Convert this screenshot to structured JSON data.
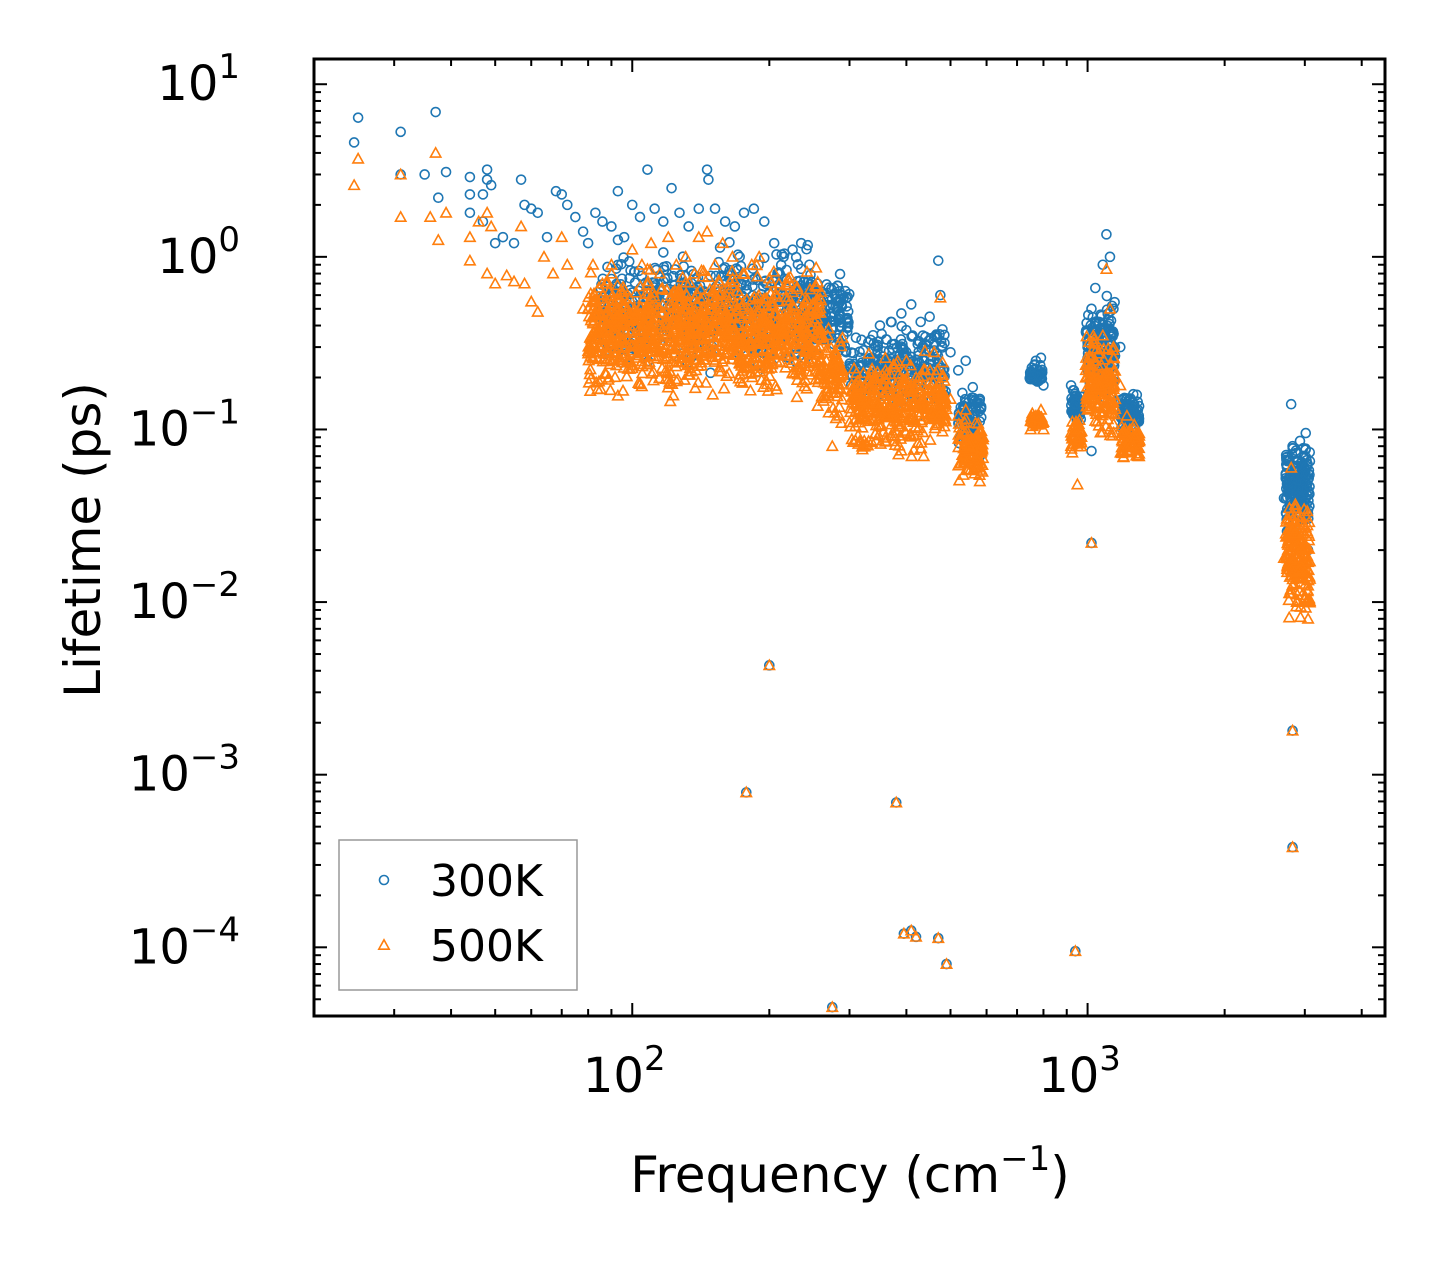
{
  "chart_data": {
    "type": "scatter",
    "title": "",
    "xlabel": "Frequency (cm",
    "xlabel_sup": "−1",
    "xlabel_suffix": ")",
    "ylabel": "Lifetime (ps)",
    "xscale": "log",
    "yscale": "log",
    "xlim": [
      20,
      4500
    ],
    "ylim": [
      4e-05,
      14
    ],
    "x_ticks": [
      {
        "value": 100,
        "base": "10",
        "exp": "2"
      },
      {
        "value": 1000,
        "base": "10",
        "exp": "3"
      }
    ],
    "y_ticks": [
      {
        "value": 10,
        "base": "10",
        "exp": "1"
      },
      {
        "value": 1,
        "base": "10",
        "exp": "0"
      },
      {
        "value": 0.1,
        "base": "10",
        "exp": "−1"
      },
      {
        "value": 0.01,
        "base": "10",
        "exp": "−2"
      },
      {
        "value": 0.001,
        "base": "10",
        "exp": "−3"
      },
      {
        "value": 0.0001,
        "base": "10",
        "exp": "−4"
      }
    ],
    "legend": {
      "position": "lower-left",
      "entries": [
        {
          "label": "300K",
          "marker": "circle",
          "color": "#1f77b4"
        },
        {
          "label": "500K",
          "marker": "triangle",
          "color": "#ff7f0e"
        }
      ]
    },
    "series": [
      {
        "name": "300K",
        "marker": "circle",
        "color": "#1f77b4",
        "points": [
          [
            24.5,
            4.6
          ],
          [
            25,
            6.4
          ],
          [
            31,
            5.3
          ],
          [
            31,
            3.0
          ],
          [
            35,
            3.0
          ],
          [
            37,
            6.9
          ],
          [
            37.5,
            2.2
          ],
          [
            39,
            3.1
          ],
          [
            44,
            2.9
          ],
          [
            44,
            2.3
          ],
          [
            44,
            1.8
          ],
          [
            47,
            2.3
          ],
          [
            47,
            1.6
          ],
          [
            48,
            3.2
          ],
          [
            48,
            2.8
          ],
          [
            49,
            2.6
          ],
          [
            50,
            1.2
          ],
          [
            52,
            1.3
          ],
          [
            55,
            1.2
          ],
          [
            57,
            2.8
          ],
          [
            58,
            2.0
          ],
          [
            60,
            1.9
          ],
          [
            62,
            1.8
          ],
          [
            65,
            1.3
          ],
          [
            68,
            2.4
          ],
          [
            70,
            2.3
          ],
          [
            72,
            2.0
          ],
          [
            75,
            1.7
          ],
          [
            78,
            1.4
          ],
          [
            80,
            1.2
          ],
          [
            83,
            1.8
          ],
          [
            86,
            1.6
          ],
          [
            90,
            1.5
          ],
          [
            93,
            2.4
          ],
          [
            96,
            1.3
          ],
          [
            100,
            2.0
          ],
          [
            104,
            1.7
          ],
          [
            108,
            3.2
          ],
          [
            112,
            1.9
          ],
          [
            117,
            1.6
          ],
          [
            122,
            2.5
          ],
          [
            127,
            1.8
          ],
          [
            133,
            1.5
          ],
          [
            140,
            1.9
          ],
          [
            146,
            3.2
          ],
          [
            147,
            2.8
          ],
          [
            152,
            1.9
          ],
          [
            160,
            1.6
          ],
          [
            168,
            1.5
          ],
          [
            176,
            1.8
          ],
          [
            185,
            1.9
          ],
          [
            195,
            1.6
          ],
          [
            205,
            1.2
          ],
          [
            215,
            1.0
          ],
          [
            225,
            1.1
          ],
          [
            235,
            1.2
          ],
          [
            245,
            0.9
          ],
          [
            255,
            0.7
          ],
          [
            265,
            0.5
          ],
          [
            275,
            0.38
          ],
          [
            285,
            0.3
          ],
          [
            295,
            0.28
          ],
          [
            310,
            0.34
          ],
          [
            330,
            0.32
          ],
          [
            350,
            0.4
          ],
          [
            370,
            0.42
          ],
          [
            390,
            0.47
          ],
          [
            410,
            0.53
          ],
          [
            430,
            0.42
          ],
          [
            450,
            0.45
          ],
          [
            470,
            0.95
          ],
          [
            475,
            0.6
          ],
          [
            480,
            0.38
          ],
          [
            500,
            0.28
          ],
          [
            520,
            0.22
          ],
          [
            540,
            0.25
          ],
          [
            550,
            0.12
          ],
          [
            560,
            0.14
          ],
          [
            570,
            0.11
          ],
          [
            580,
            0.07
          ],
          [
            750,
            0.21
          ],
          [
            770,
            0.25
          ],
          [
            790,
            0.26
          ],
          [
            800,
            0.18
          ],
          [
            920,
            0.18
          ],
          [
            940,
            0.14
          ],
          [
            960,
            0.12
          ],
          [
            1000,
            0.3
          ],
          [
            1020,
            0.5
          ],
          [
            1040,
            0.66
          ],
          [
            1060,
            0.42
          ],
          [
            1080,
            0.9
          ],
          [
            1100,
            1.35
          ],
          [
            1120,
            1.0
          ],
          [
            1140,
            0.5
          ],
          [
            1180,
            0.3
          ],
          [
            1220,
            0.14
          ],
          [
            1260,
            0.16
          ],
          [
            1290,
            0.13
          ],
          [
            2700,
            0.04
          ],
          [
            2750,
            0.03
          ],
          [
            2800,
            0.14
          ],
          [
            2820,
            0.08
          ],
          [
            2850,
            0.06
          ],
          [
            2900,
            0.035
          ],
          [
            2950,
            0.03
          ],
          [
            3000,
            0.038
          ],
          [
            3050,
            0.02
          ],
          [
            200,
            0.0043
          ],
          [
            178,
            0.00079
          ],
          [
            380,
            0.00069
          ],
          [
            395,
            0.00012
          ],
          [
            410,
            0.000125
          ],
          [
            420,
            0.000115
          ],
          [
            470,
            0.000113
          ],
          [
            490,
            8e-05
          ],
          [
            275,
            4.5e-05
          ],
          [
            940,
            9.5e-05
          ],
          [
            1020,
            0.022
          ],
          [
            1020,
            0.075
          ],
          [
            2820,
            0.0018
          ],
          [
            2820,
            0.00038
          ]
        ]
      },
      {
        "name": "500K",
        "marker": "triangle",
        "color": "#ff7f0e",
        "points": [
          [
            24.5,
            2.6
          ],
          [
            25,
            3.7
          ],
          [
            31,
            1.7
          ],
          [
            31,
            3.0
          ],
          [
            36,
            1.7
          ],
          [
            37,
            4.0
          ],
          [
            37.5,
            1.25
          ],
          [
            39,
            1.8
          ],
          [
            44,
            1.3
          ],
          [
            44,
            0.95
          ],
          [
            46,
            1.6
          ],
          [
            48,
            1.8
          ],
          [
            48,
            0.8
          ],
          [
            49,
            1.5
          ],
          [
            50,
            0.7
          ],
          [
            53,
            0.78
          ],
          [
            55,
            0.72
          ],
          [
            57,
            1.5
          ],
          [
            58,
            0.7
          ],
          [
            60,
            0.55
          ],
          [
            62,
            0.48
          ],
          [
            64,
            1.0
          ],
          [
            67,
            0.8
          ],
          [
            70,
            1.3
          ],
          [
            72,
            0.9
          ],
          [
            75,
            0.7
          ],
          [
            78,
            0.5
          ],
          [
            82,
            0.9
          ],
          [
            86,
            0.7
          ],
          [
            90,
            0.9
          ],
          [
            95,
            0.6
          ],
          [
            100,
            1.1
          ],
          [
            105,
            0.9
          ],
          [
            110,
            1.2
          ],
          [
            115,
            0.8
          ],
          [
            120,
            1.3
          ],
          [
            125,
            0.9
          ],
          [
            131,
            1.0
          ],
          [
            140,
            1.3
          ],
          [
            146,
            1.4
          ],
          [
            152,
            0.9
          ],
          [
            158,
            1.2
          ],
          [
            166,
            1.0
          ],
          [
            175,
            0.8
          ],
          [
            183,
            0.9
          ],
          [
            190,
            1.0
          ],
          [
            200,
            0.75
          ],
          [
            210,
            0.7
          ],
          [
            220,
            0.75
          ],
          [
            230,
            0.65
          ],
          [
            240,
            0.45
          ],
          [
            250,
            0.32
          ],
          [
            260,
            0.25
          ],
          [
            270,
            0.2
          ],
          [
            275,
            0.08
          ],
          [
            285,
            0.12
          ],
          [
            300,
            0.11
          ],
          [
            320,
            0.15
          ],
          [
            340,
            0.19
          ],
          [
            360,
            0.22
          ],
          [
            380,
            0.24
          ],
          [
            400,
            0.25
          ],
          [
            420,
            0.2
          ],
          [
            440,
            0.22
          ],
          [
            460,
            0.28
          ],
          [
            475,
            0.58
          ],
          [
            480,
            0.2
          ],
          [
            500,
            0.15
          ],
          [
            520,
            0.12
          ],
          [
            540,
            0.13
          ],
          [
            550,
            0.08
          ],
          [
            570,
            0.06
          ],
          [
            580,
            0.05
          ],
          [
            750,
            0.1
          ],
          [
            770,
            0.12
          ],
          [
            790,
            0.13
          ],
          [
            800,
            0.1
          ],
          [
            920,
            0.08
          ],
          [
            940,
            0.1
          ],
          [
            960,
            0.09
          ],
          [
            1000,
            0.13
          ],
          [
            1020,
            0.2
          ],
          [
            1040,
            0.25
          ],
          [
            1060,
            0.18
          ],
          [
            1080,
            0.35
          ],
          [
            1100,
            0.85
          ],
          [
            1120,
            0.5
          ],
          [
            1140,
            0.3
          ],
          [
            1180,
            0.18
          ],
          [
            1220,
            0.12
          ],
          [
            1260,
            0.08
          ],
          [
            1290,
            0.07
          ],
          [
            2700,
            0.018
          ],
          [
            2750,
            0.016
          ],
          [
            2800,
            0.06
          ],
          [
            2820,
            0.03
          ],
          [
            2850,
            0.025
          ],
          [
            2900,
            0.015
          ],
          [
            2950,
            0.02
          ],
          [
            3000,
            0.015
          ],
          [
            3050,
            0.008
          ],
          [
            200,
            0.0043
          ],
          [
            178,
            0.00079
          ],
          [
            380,
            0.00069
          ],
          [
            395,
            0.00012
          ],
          [
            410,
            0.000125
          ],
          [
            420,
            0.000115
          ],
          [
            470,
            0.000113
          ],
          [
            490,
            8e-05
          ],
          [
            275,
            4.5e-05
          ],
          [
            940,
            9.5e-05
          ],
          [
            1020,
            0.022
          ],
          [
            950,
            0.048
          ],
          [
            2820,
            0.0018
          ],
          [
            2820,
            0.00038
          ]
        ]
      }
    ],
    "dense_bands": [
      {
        "series": "300K",
        "x_range": [
          85,
          250
        ],
        "y_range": [
          0.18,
          1.3
        ],
        "count": 650,
        "seed": 11
      },
      {
        "series": "300K",
        "x_range": [
          240,
          300
        ],
        "y_range": [
          0.24,
          0.9
        ],
        "count": 160,
        "seed": 12
      },
      {
        "series": "300K",
        "x_range": [
          300,
          490
        ],
        "y_range": [
          0.11,
          0.5
        ],
        "count": 260,
        "seed": 13
      },
      {
        "series": "300K",
        "x_range": [
          520,
          585
        ],
        "y_range": [
          0.065,
          0.2
        ],
        "count": 90,
        "seed": 14
      },
      {
        "series": "300K",
        "x_range": [
          745,
          800
        ],
        "y_range": [
          0.17,
          0.26
        ],
        "count": 40,
        "seed": 15
      },
      {
        "series": "300K",
        "x_range": [
          920,
          970
        ],
        "y_range": [
          0.1,
          0.19
        ],
        "count": 50,
        "seed": 16
      },
      {
        "series": "300K",
        "x_range": [
          990,
          1150
        ],
        "y_range": [
          0.12,
          0.7
        ],
        "count": 160,
        "seed": 17
      },
      {
        "series": "300K",
        "x_range": [
          1180,
          1300
        ],
        "y_range": [
          0.09,
          0.17
        ],
        "count": 80,
        "seed": 18
      },
      {
        "series": "300K",
        "x_range": [
          2720,
          3080
        ],
        "y_range": [
          0.018,
          0.12
        ],
        "count": 180,
        "seed": 19
      },
      {
        "series": "500K",
        "x_range": [
          80,
          260
        ],
        "y_range": [
          0.13,
          1.05
        ],
        "count": 1100,
        "seed": 21
      },
      {
        "series": "500K",
        "x_range": [
          255,
          290
        ],
        "y_range": [
          0.09,
          0.45
        ],
        "count": 90,
        "seed": 22
      },
      {
        "series": "500K",
        "x_range": [
          300,
          490
        ],
        "y_range": [
          0.06,
          0.3
        ],
        "count": 380,
        "seed": 23
      },
      {
        "series": "500K",
        "x_range": [
          520,
          590
        ],
        "y_range": [
          0.045,
          0.13
        ],
        "count": 110,
        "seed": 24
      },
      {
        "series": "500K",
        "x_range": [
          750,
          800
        ],
        "y_range": [
          0.1,
          0.13
        ],
        "count": 30,
        "seed": 25
      },
      {
        "series": "500K",
        "x_range": [
          920,
          970
        ],
        "y_range": [
          0.07,
          0.12
        ],
        "count": 40,
        "seed": 26
      },
      {
        "series": "500K",
        "x_range": [
          990,
          1150
        ],
        "y_range": [
          0.08,
          0.4
        ],
        "count": 160,
        "seed": 27
      },
      {
        "series": "500K",
        "x_range": [
          1180,
          1300
        ],
        "y_range": [
          0.06,
          0.12
        ],
        "count": 70,
        "seed": 28
      },
      {
        "series": "500K",
        "x_range": [
          2720,
          3080
        ],
        "y_range": [
          0.007,
          0.05
        ],
        "count": 180,
        "seed": 29
      }
    ]
  }
}
